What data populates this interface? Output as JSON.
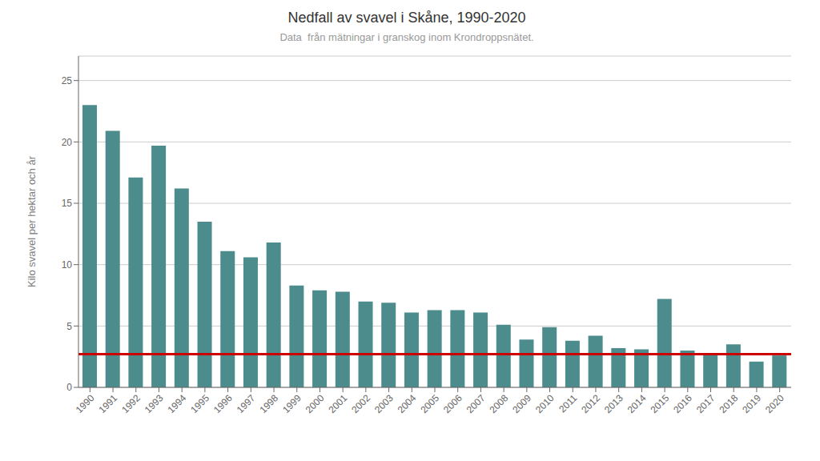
{
  "chart_data": {
    "type": "bar",
    "title": "Nedfall av svavel i Skåne, 1990-2020",
    "subtitle": "Data  från mätningar i granskog inom Krondroppsnätet.",
    "y_label": "Kilo svavel per hektar och år",
    "categories": [
      "1990",
      "1991",
      "1992",
      "1993",
      "1994",
      "1995",
      "1996",
      "1997",
      "1998",
      "1999",
      "2000",
      "2001",
      "2002",
      "2003",
      "2004",
      "2005",
      "2006",
      "2007",
      "2008",
      "2009",
      "2010",
      "2011",
      "2012",
      "2013",
      "2014",
      "2015",
      "2016",
      "2017",
      "2018",
      "2019",
      "2020"
    ],
    "values": [
      23.0,
      20.9,
      17.1,
      19.7,
      16.2,
      13.5,
      11.1,
      10.6,
      11.8,
      8.3,
      7.9,
      7.8,
      7.0,
      6.9,
      6.1,
      6.3,
      6.3,
      6.1,
      5.1,
      3.9,
      4.9,
      3.8,
      4.2,
      3.2,
      3.1,
      7.2,
      3.0,
      2.7,
      3.5,
      2.1,
      2.6
    ],
    "color": "#4d8c8c",
    "reference_line": {
      "value": 2.7,
      "color": "#cc0000"
    },
    "ylim": [
      0,
      27
    ],
    "yticks": [
      0,
      5,
      10,
      15,
      20,
      25
    ],
    "grid": true
  }
}
